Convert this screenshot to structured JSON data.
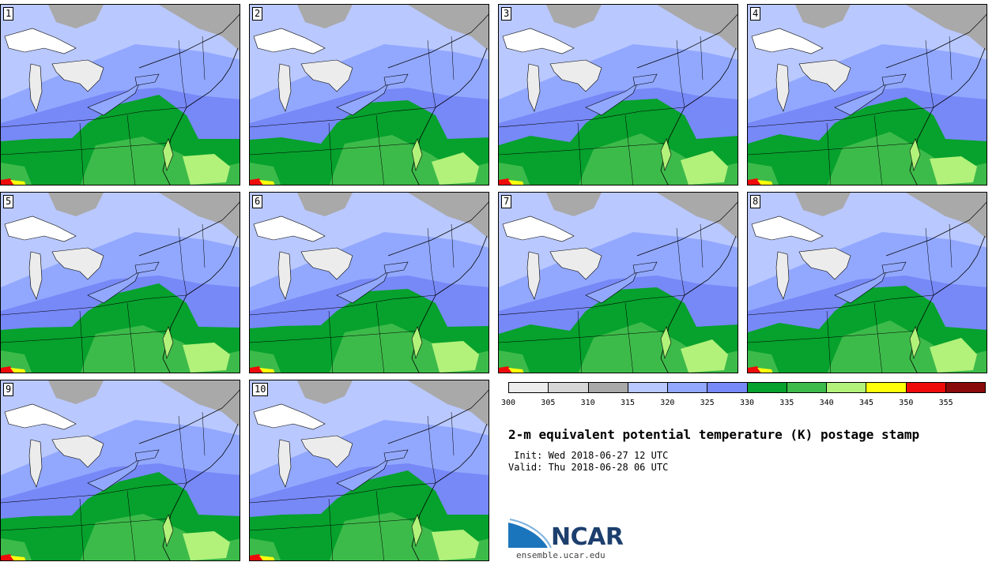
{
  "panels": [
    {
      "label": "1"
    },
    {
      "label": "2"
    },
    {
      "label": "3"
    },
    {
      "label": "4"
    },
    {
      "label": "5"
    },
    {
      "label": "6"
    },
    {
      "label": "7"
    },
    {
      "label": "8"
    },
    {
      "label": "9"
    },
    {
      "label": "10"
    }
  ],
  "colorbar": {
    "colors": [
      "#ececec",
      "#d6d6d6",
      "#a9a9a9",
      "#b9c8ff",
      "#92a8ff",
      "#7788f7",
      "#07a12d",
      "#3dbb4a",
      "#b2f27a",
      "#ffff0a",
      "#ef0a0a",
      "#890a0a"
    ],
    "ticks": [
      "300",
      "305",
      "310",
      "315",
      "320",
      "325",
      "330",
      "335",
      "340",
      "345",
      "350",
      "355"
    ]
  },
  "title": "2-m equivalent potential temperature (K) postage stamp",
  "init": " Init: Wed 2018-06-27 12 UTC",
  "valid": "Valid: Thu 2018-06-28 06 UTC",
  "logo": {
    "text": "NCAR",
    "site": "ensemble.ucar.edu"
  },
  "map_colors": {
    "lake": "#ececec",
    "gray": "#a9a9a9",
    "light_blue": "#b9c8ff",
    "blue": "#92a8ff",
    "deep_blue": "#7788f7",
    "green_dark": "#07a12d",
    "green": "#3dbb4a",
    "light_green": "#b2f27a",
    "yellow": "#ffff0a",
    "red": "#ef0a0a"
  }
}
